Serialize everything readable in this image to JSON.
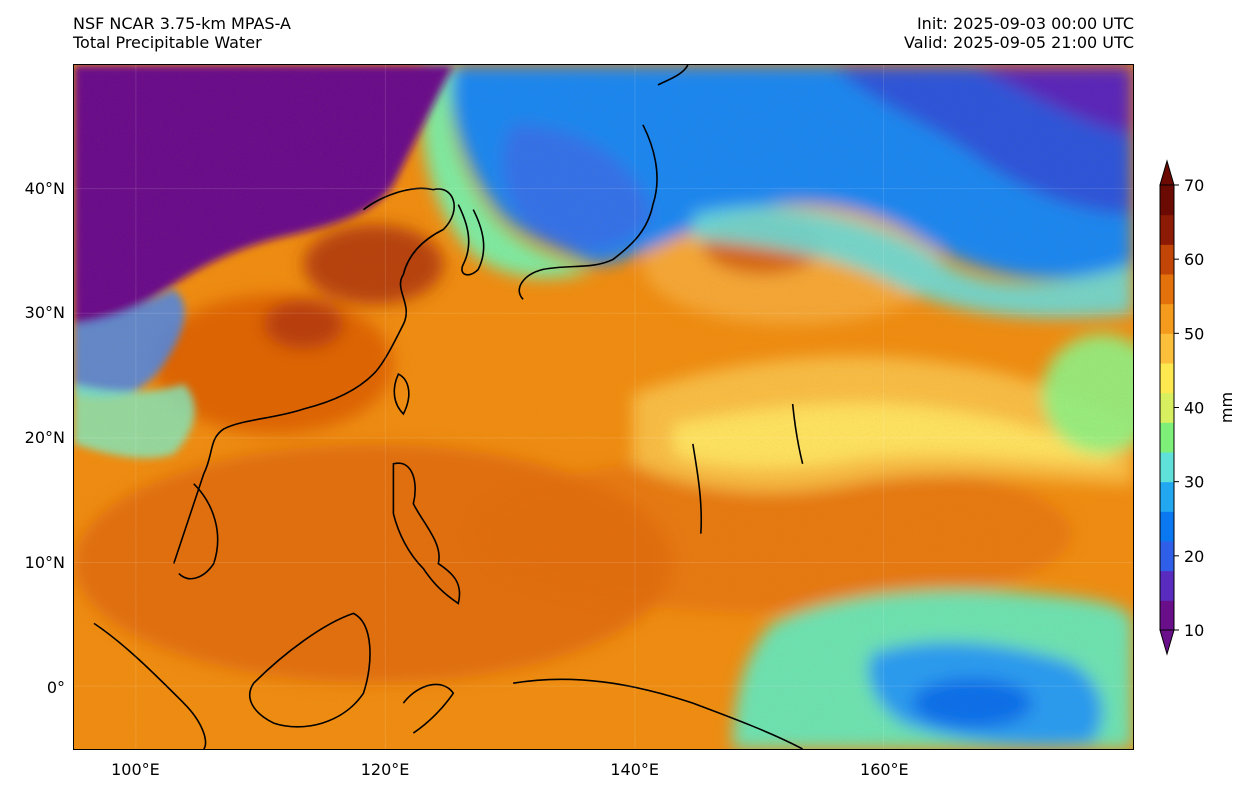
{
  "header": {
    "model_line": "NSF NCAR 3.75-km MPAS-A",
    "field_line": "Total Precipitable Water",
    "init_line": "Init: 2025-09-03 00:00 UTC",
    "valid_line": "Valid: 2025-09-05 21:00 UTC"
  },
  "map": {
    "lon_range": [
      95,
      180
    ],
    "lat_range": [
      -5,
      50
    ],
    "lat_ticks": [
      {
        "value": 40,
        "label": "40°N"
      },
      {
        "value": 30,
        "label": "30°N"
      },
      {
        "value": 20,
        "label": "20°N"
      },
      {
        "value": 10,
        "label": "10°N"
      },
      {
        "value": 0,
        "label": "0°"
      }
    ],
    "lon_ticks": [
      {
        "value": 100,
        "label": "100°E"
      },
      {
        "value": 120,
        "label": "120°E"
      },
      {
        "value": 140,
        "label": "140°E"
      },
      {
        "value": 160,
        "label": "160°E"
      }
    ]
  },
  "colorbar": {
    "unit": "mm",
    "min": 10,
    "max": 70,
    "ticks": [
      {
        "value": 70,
        "label": "70"
      },
      {
        "value": 60,
        "label": "60"
      },
      {
        "value": 50,
        "label": "50"
      },
      {
        "value": 40,
        "label": "40"
      },
      {
        "value": 30,
        "label": "30"
      },
      {
        "value": 20,
        "label": "20"
      },
      {
        "value": 10,
        "label": "10"
      }
    ],
    "colors": [
      "#6a0f8a",
      "#5a2bbf",
      "#2f5fe8",
      "#0a78f0",
      "#22a8f0",
      "#5fe0d8",
      "#7ef07a",
      "#d8f060",
      "#fde850",
      "#fbbf3c",
      "#f49a1c",
      "#e4720c",
      "#c24508",
      "#8c1a04",
      "#6a0a02"
    ]
  }
}
